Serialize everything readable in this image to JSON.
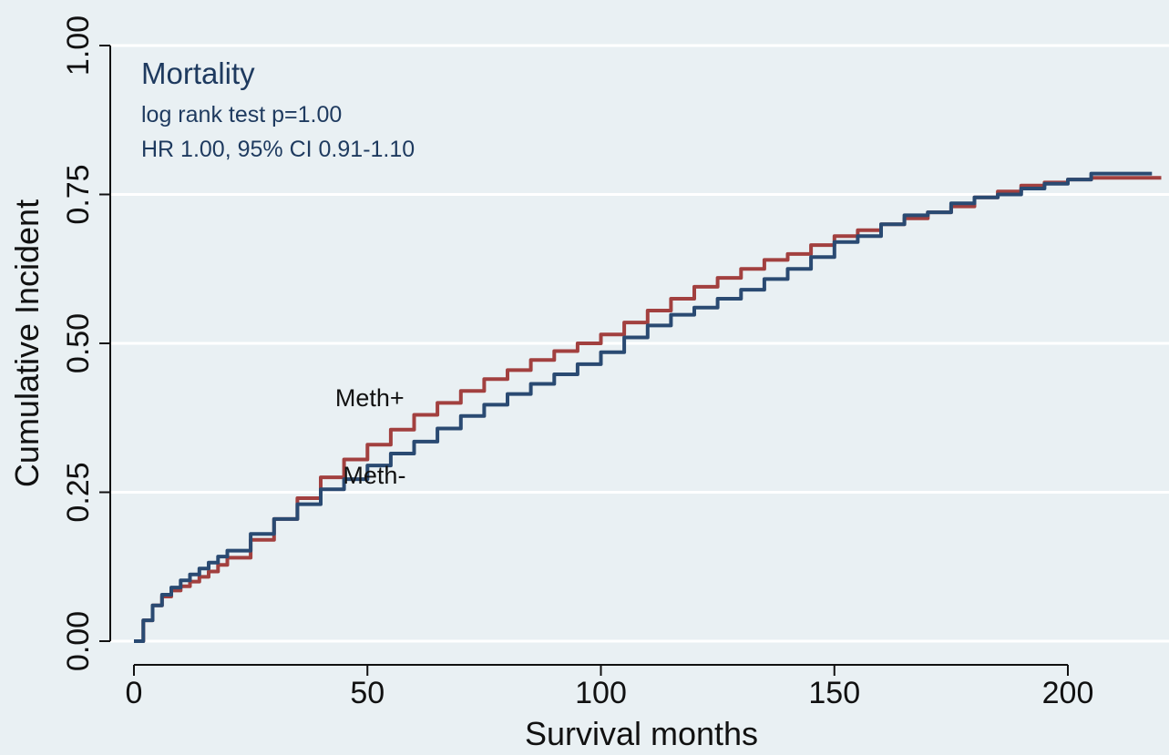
{
  "chart_data": {
    "type": "line",
    "step": true,
    "title": "",
    "xlabel": "Survival months",
    "ylabel": "Cumulative Incident",
    "xlim": [
      0,
      220
    ],
    "ylim": [
      0,
      1
    ],
    "x_ticks": [
      0,
      50,
      100,
      150,
      200
    ],
    "x_tick_labels": [
      "0",
      "50",
      "100",
      "150",
      "200"
    ],
    "y_ticks": [
      0,
      0.25,
      0.5,
      0.75,
      1.0
    ],
    "y_tick_labels": [
      "0.00",
      "0.25",
      "0.50",
      "0.75",
      "1.00"
    ],
    "grid": "horizontal",
    "legend": "none",
    "annotations": {
      "heading": "Mortality",
      "lines": [
        "log rank test p=1.00",
        "HR 1.00, 95% CI 0.91-1.10"
      ]
    },
    "series": [
      {
        "name": "Meth+",
        "color": "#a2403f",
        "x": [
          0,
          2,
          4,
          6,
          8,
          10,
          12,
          14,
          16,
          18,
          20,
          25,
          30,
          35,
          40,
          45,
          50,
          55,
          60,
          65,
          70,
          75,
          80,
          85,
          90,
          95,
          100,
          105,
          110,
          115,
          120,
          125,
          130,
          135,
          140,
          145,
          150,
          155,
          160,
          165,
          170,
          175,
          180,
          185,
          190,
          195,
          200,
          205,
          210,
          220
        ],
        "y": [
          0,
          0.035,
          0.06,
          0.075,
          0.085,
          0.092,
          0.1,
          0.108,
          0.117,
          0.128,
          0.14,
          0.17,
          0.205,
          0.24,
          0.275,
          0.305,
          0.33,
          0.355,
          0.38,
          0.4,
          0.42,
          0.44,
          0.455,
          0.472,
          0.487,
          0.5,
          0.515,
          0.535,
          0.555,
          0.575,
          0.595,
          0.61,
          0.625,
          0.64,
          0.65,
          0.665,
          0.68,
          0.69,
          0.7,
          0.71,
          0.72,
          0.73,
          0.745,
          0.755,
          0.765,
          0.77,
          0.775,
          0.778,
          0.778,
          0.778
        ]
      },
      {
        "name": "Meth-",
        "color": "#2a4a72",
        "x": [
          0,
          2,
          4,
          6,
          8,
          10,
          12,
          14,
          16,
          18,
          20,
          25,
          30,
          35,
          40,
          45,
          50,
          55,
          60,
          65,
          70,
          75,
          80,
          85,
          90,
          95,
          100,
          105,
          110,
          115,
          120,
          125,
          130,
          135,
          140,
          145,
          150,
          155,
          160,
          165,
          170,
          175,
          180,
          185,
          190,
          195,
          200,
          205,
          210,
          218
        ],
        "y": [
          0,
          0.035,
          0.06,
          0.078,
          0.09,
          0.102,
          0.112,
          0.122,
          0.132,
          0.142,
          0.152,
          0.18,
          0.205,
          0.23,
          0.255,
          0.272,
          0.295,
          0.315,
          0.335,
          0.357,
          0.378,
          0.397,
          0.415,
          0.432,
          0.448,
          0.465,
          0.485,
          0.51,
          0.53,
          0.548,
          0.56,
          0.575,
          0.59,
          0.608,
          0.625,
          0.645,
          0.67,
          0.68,
          0.7,
          0.715,
          0.72,
          0.735,
          0.745,
          0.75,
          0.76,
          0.768,
          0.775,
          0.785,
          0.785,
          0.785
        ]
      }
    ],
    "series_labels": [
      {
        "text": "Meth+",
        "x": 50.5,
        "y": 0.41
      },
      {
        "text": "Meth-",
        "x": 51.5,
        "y": 0.28
      }
    ]
  }
}
